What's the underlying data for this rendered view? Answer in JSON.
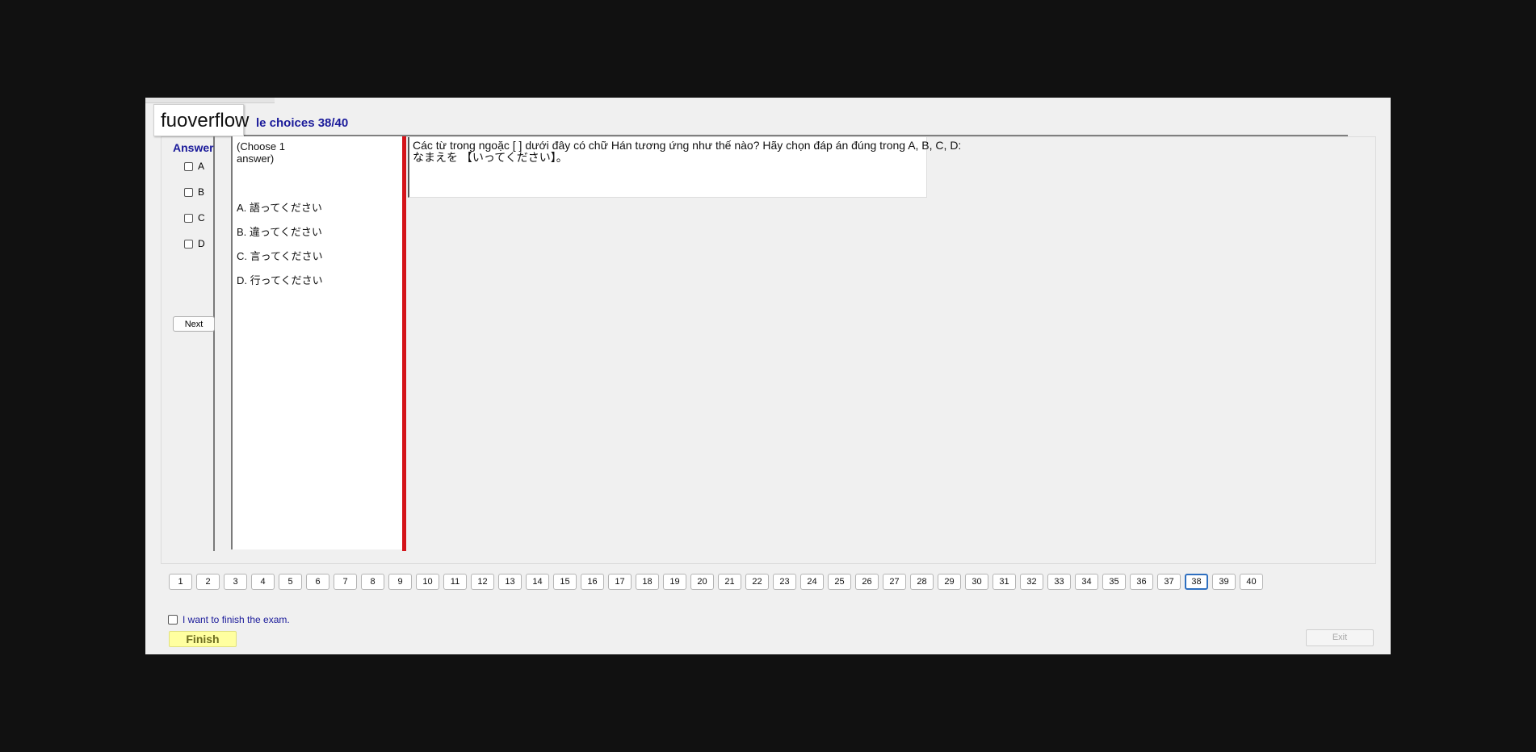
{
  "watermark": "fuoverflow",
  "section_title": "le choices 38/40",
  "answer": {
    "heading": "Answer",
    "options": [
      "A",
      "B",
      "C",
      "D"
    ],
    "next_label": "Next"
  },
  "choices": {
    "instruction": "(Choose 1 answer)",
    "items": [
      "A.  語ってください",
      "B.  違ってください",
      "C.  言ってください",
      "D.  行ってください"
    ]
  },
  "question": {
    "line1": "Các từ trong ngoặc [    ] dưới đây có chữ Hán tương ứng như thế nào? Hãy chọn đáp án đúng trong A, B, C, D:",
    "line2": "なまえを 【いってください】。"
  },
  "pager": {
    "pages": [
      "1",
      "2",
      "3",
      "4",
      "5",
      "6",
      "7",
      "8",
      "9",
      "10",
      "11",
      "12",
      "13",
      "14",
      "15",
      "16",
      "17",
      "18",
      "19",
      "20",
      "21",
      "22",
      "23",
      "24",
      "25",
      "26",
      "27",
      "28",
      "29",
      "30",
      "31",
      "32",
      "33",
      "34",
      "35",
      "36",
      "37",
      "38",
      "39",
      "40"
    ],
    "current": "38"
  },
  "footer": {
    "finish_check_label": "I want to finish the exam.",
    "finish_label": "Finish",
    "exit_label": "Exit"
  },
  "colors": {
    "title_blue": "#1a1a9a",
    "splitter_red": "#d4141a",
    "finish_yellow": "#ffffa0",
    "current_page_border": "#2e6fc0"
  }
}
